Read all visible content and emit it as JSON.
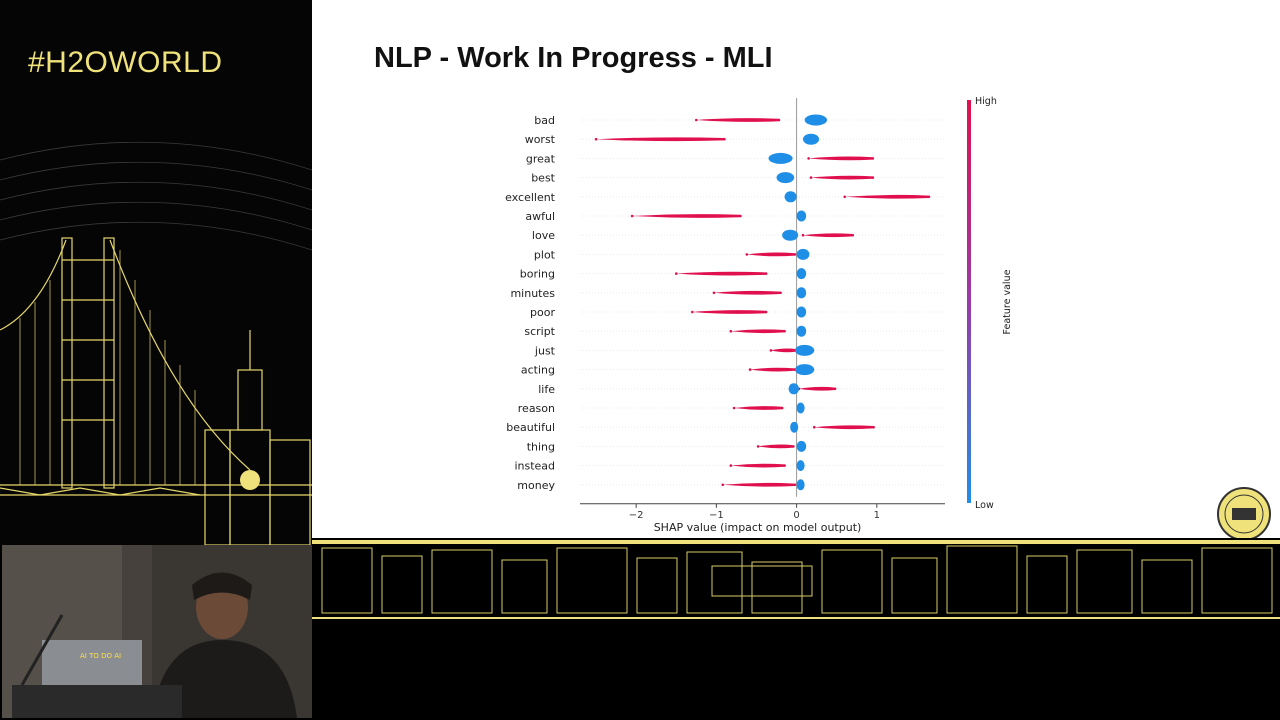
{
  "event": {
    "hashtag": "#H2OWORLD"
  },
  "slide": {
    "title": "NLP - Work In Progress - MLI"
  },
  "colors": {
    "high": "#e0104f",
    "low": "#1f8ee6",
    "brand_yellow": "#f0e27a"
  },
  "chart_data": {
    "type": "scatter",
    "subtype": "shap-beeswarm",
    "xlabel": "SHAP value (impact on model output)",
    "xlim": [
      -2.7,
      1.85
    ],
    "xticks": [
      -2,
      -1,
      0,
      1
    ],
    "tick_labels": [
      "−2",
      "−1",
      "0",
      "1"
    ],
    "colorbar": {
      "label": "Feature value",
      "high": "High",
      "low": "Low"
    },
    "features": [
      {
        "name": "bad",
        "blue": [
          0.1,
          0.38
        ],
        "red": [
          -1.25,
          -0.22
        ]
      },
      {
        "name": "worst",
        "blue": [
          0.08,
          0.28
        ],
        "red": [
          -2.5,
          -0.9
        ]
      },
      {
        "name": "great",
        "blue": [
          -0.35,
          -0.05
        ],
        "red": [
          0.15,
          0.95
        ]
      },
      {
        "name": "best",
        "blue": [
          -0.25,
          -0.03
        ],
        "red": [
          0.18,
          0.95
        ]
      },
      {
        "name": "excellent",
        "blue": [
          -0.15,
          0.0
        ],
        "red": [
          0.6,
          1.65
        ]
      },
      {
        "name": "awful",
        "blue": [
          0.0,
          0.12
        ],
        "red": [
          -2.05,
          -0.7
        ]
      },
      {
        "name": "love",
        "blue": [
          -0.18,
          0.02
        ],
        "red": [
          0.08,
          0.7
        ]
      },
      {
        "name": "plot",
        "blue": [
          0.0,
          0.16
        ],
        "red": [
          -0.62,
          -0.02
        ]
      },
      {
        "name": "boring",
        "blue": [
          0.0,
          0.12
        ],
        "red": [
          -1.5,
          -0.38
        ]
      },
      {
        "name": "minutes",
        "blue": [
          0.0,
          0.12
        ],
        "red": [
          -1.03,
          -0.2
        ]
      },
      {
        "name": "poor",
        "blue": [
          0.0,
          0.12
        ],
        "red": [
          -1.3,
          -0.38
        ]
      },
      {
        "name": "script",
        "blue": [
          0.0,
          0.12
        ],
        "red": [
          -0.82,
          -0.15
        ]
      },
      {
        "name": "just",
        "blue": [
          -0.02,
          0.22
        ],
        "red": [
          -0.32,
          0.0
        ]
      },
      {
        "name": "acting",
        "blue": [
          -0.02,
          0.22
        ],
        "red": [
          -0.58,
          -0.02
        ]
      },
      {
        "name": "life",
        "blue": [
          -0.1,
          0.03
        ],
        "red": [
          0.03,
          0.48
        ]
      },
      {
        "name": "reason",
        "blue": [
          0.0,
          0.1
        ],
        "red": [
          -0.78,
          -0.18
        ]
      },
      {
        "name": "beautiful",
        "blue": [
          -0.08,
          0.02
        ],
        "red": [
          0.22,
          0.96
        ]
      },
      {
        "name": "thing",
        "blue": [
          0.0,
          0.12
        ],
        "red": [
          -0.48,
          -0.04
        ]
      },
      {
        "name": "instead",
        "blue": [
          0.0,
          0.1
        ],
        "red": [
          -0.82,
          -0.15
        ]
      },
      {
        "name": "money",
        "blue": [
          0.0,
          0.1
        ],
        "red": [
          -0.92,
          -0.02
        ]
      }
    ]
  },
  "video": {
    "laptop_sticker": "AI TO DO AI"
  }
}
